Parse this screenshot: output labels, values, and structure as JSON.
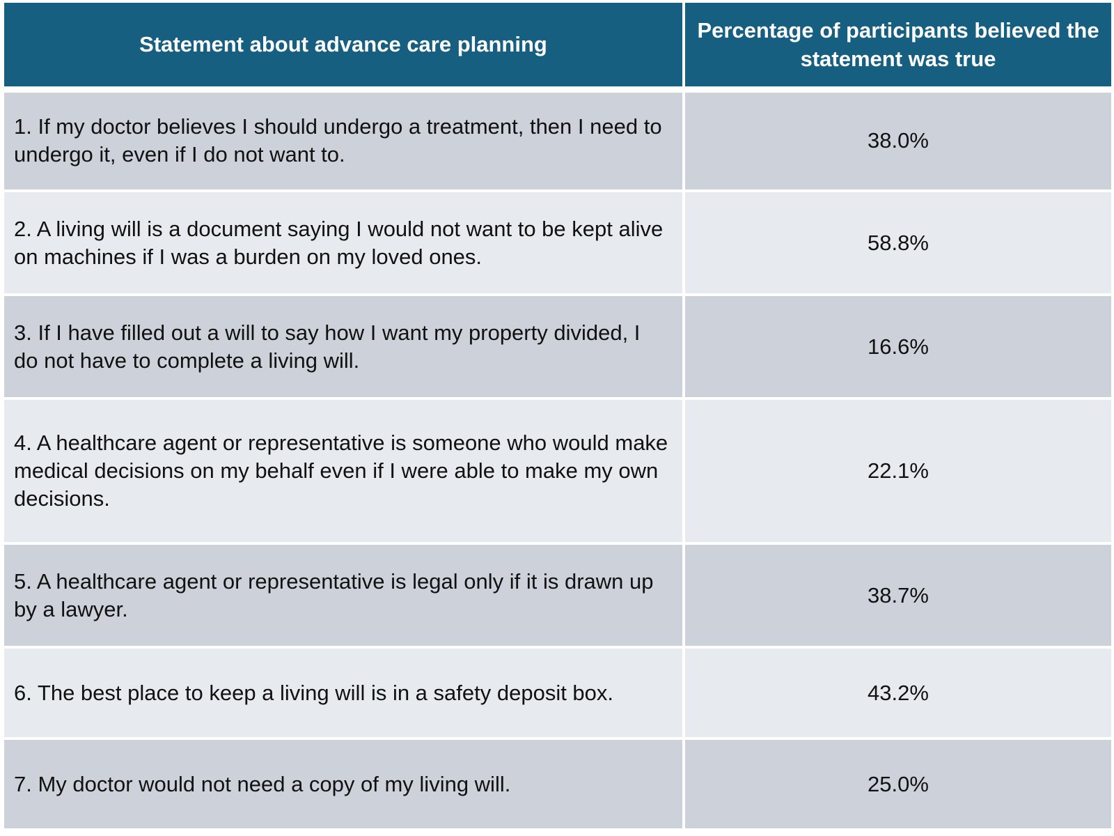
{
  "table": {
    "headers": [
      "Statement about advance care planning",
      "Percentage of participants believed the statement was true"
    ],
    "rows": [
      {
        "statement": "1. If my doctor believes I should undergo a treatment, then I need to undergo it, even if I do not want to.",
        "percentage": "38.0%"
      },
      {
        "statement": "2. A living will is a document saying I would not want to be kept alive on machines if I was a burden on my loved ones.",
        "percentage": "58.8%"
      },
      {
        "statement": "3. If I have filled out a will to say how I want my property divided, I do not have to complete a living will.",
        "percentage": "16.6%"
      },
      {
        "statement": "4. A healthcare agent or representative is someone who would make medical decisions on my behalf even if I were able to make my own decisions.",
        "percentage": "22.1%"
      },
      {
        "statement": "5. A healthcare agent or representative is legal only if it is drawn up by a lawyer.",
        "percentage": "38.7%"
      },
      {
        "statement": "6. The best place to keep a living will is in a safety deposit box.",
        "percentage": "43.2%"
      },
      {
        "statement": "7. My doctor would not need a copy of my living will.",
        "percentage": "25.0%"
      }
    ]
  },
  "colors": {
    "header_bg": "#175f80",
    "header_text": "#ffffff",
    "row_odd_bg": "#cdd2da",
    "row_even_bg": "#e7eaee",
    "cell_text": "#111111"
  }
}
